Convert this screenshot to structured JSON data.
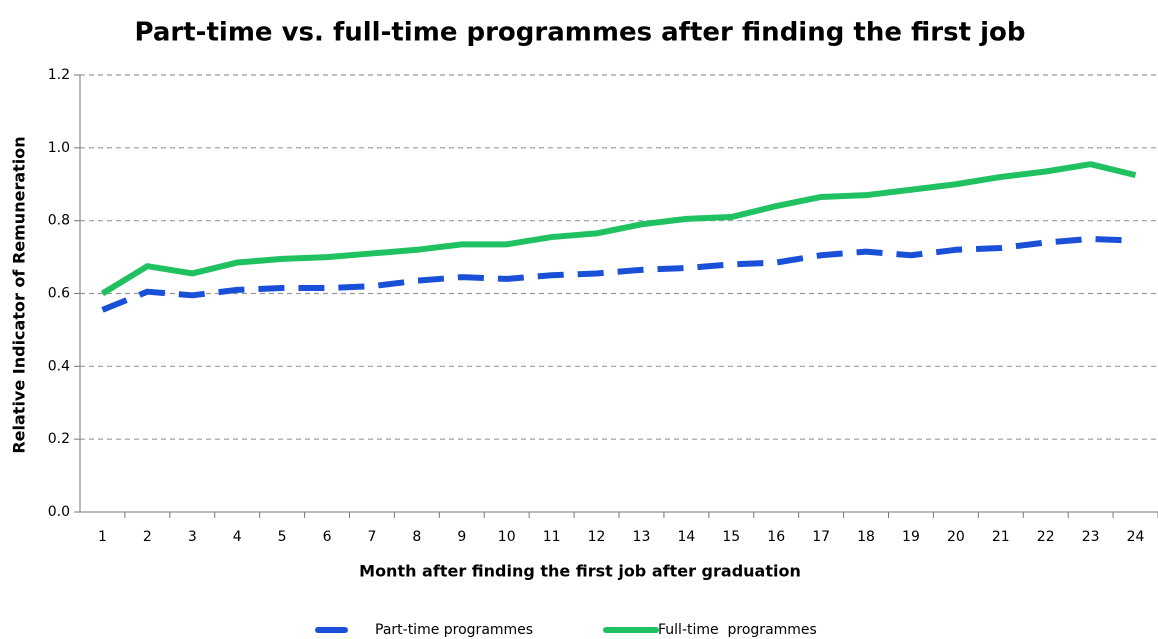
{
  "chart_data": {
    "type": "line",
    "title": "Part-time vs. full-time programmes after finding the first job",
    "xlabel": "Month after finding the first job after graduation",
    "ylabel": "Relative Indicator of Remuneration",
    "categories": [
      "1",
      "2",
      "3",
      "4",
      "5",
      "6",
      "7",
      "8",
      "9",
      "10",
      "11",
      "12",
      "13",
      "14",
      "15",
      "16",
      "17",
      "18",
      "19",
      "20",
      "21",
      "22",
      "23",
      "24"
    ],
    "series": [
      {
        "name": "Part-time programmes",
        "color": "#1a4fd8",
        "dashed": true,
        "values": [
          0.555,
          0.605,
          0.595,
          0.61,
          0.615,
          0.615,
          0.62,
          0.635,
          0.645,
          0.64,
          0.65,
          0.655,
          0.665,
          0.67,
          0.68,
          0.685,
          0.705,
          0.715,
          0.705,
          0.72,
          0.725,
          0.74,
          0.75,
          0.745
        ]
      },
      {
        "name": "Full-time  programmes",
        "color": "#1fc160",
        "dashed": false,
        "values": [
          0.6,
          0.675,
          0.655,
          0.685,
          0.695,
          0.7,
          0.71,
          0.72,
          0.735,
          0.735,
          0.755,
          0.765,
          0.79,
          0.805,
          0.81,
          0.84,
          0.865,
          0.87,
          0.885,
          0.9,
          0.92,
          0.935,
          0.955,
          0.925
        ]
      }
    ],
    "ylim": [
      0,
      1.2
    ],
    "yticks": [
      {
        "value": 0,
        "label": "0.0"
      },
      0.2,
      0.4,
      0.6,
      0.8,
      {
        "value": 1,
        "label": "1.0"
      },
      1.2
    ],
    "grid": true,
    "legend": "bottom"
  }
}
